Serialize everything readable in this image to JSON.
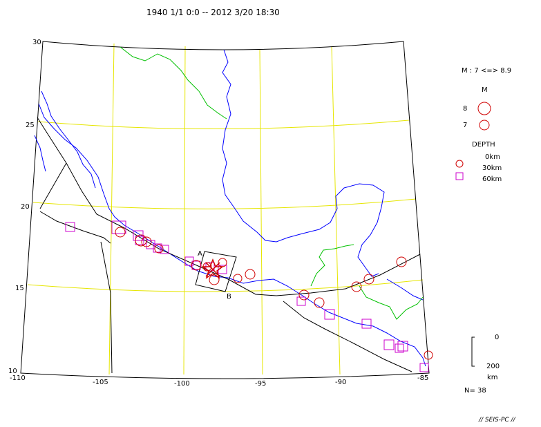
{
  "title": "1940 1/1 0:0 -- 2012 3/20 18:30",
  "lat_labels": [
    "30",
    "25",
    "20",
    "15",
    "10"
  ],
  "lon_labels": [
    "-110",
    "-105",
    "-100",
    "-95",
    "-90",
    "-85"
  ],
  "section_labels": {
    "a": "A",
    "b": "B"
  },
  "legend": {
    "mag_range": "M : 7 <=> 8.9",
    "mag_title": "M",
    "mag_8": "8",
    "mag_7": "7",
    "depth_title": "DEPTH",
    "depth_0": "0km",
    "depth_30": "30km",
    "depth_60": "60km",
    "scale_top": "0",
    "scale_bottom": "200",
    "scale_unit": "km",
    "count": "N= 38"
  },
  "signature": "// SEIS-PC //",
  "colors": {
    "graticule": "#e6e600",
    "coast": "#0000ff",
    "border": "#00c000",
    "event": "#d00000",
    "deep": "#cc00cc",
    "frame": "#000000"
  }
}
